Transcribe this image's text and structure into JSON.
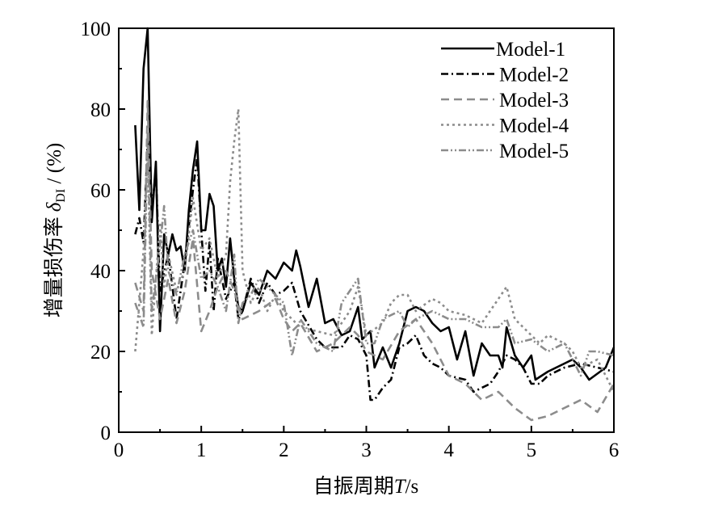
{
  "chart_data": {
    "type": "line",
    "title": "",
    "xlabel": "自振周期",
    "xlabel_var": "T",
    "xlabel_unit": "/s",
    "ylabel": "增量损伤率",
    "ylabel_var": "δ",
    "ylabel_sub": "DI",
    "ylabel_unit": " / (%)",
    "xlim": [
      0,
      6
    ],
    "ylim": [
      0,
      100
    ],
    "xticks": [
      "0",
      "1",
      "2",
      "3",
      "4",
      "5",
      "6"
    ],
    "yticks": [
      "0",
      "20",
      "40",
      "60",
      "80",
      "100"
    ],
    "grid": false,
    "legend_position": "top-right",
    "series": [
      {
        "name": "Model-1",
        "color": "#000000",
        "dash": "solid",
        "x": [
          0.2,
          0.25,
          0.3,
          0.35,
          0.4,
          0.45,
          0.5,
          0.55,
          0.6,
          0.65,
          0.7,
          0.75,
          0.8,
          0.85,
          0.9,
          0.95,
          1.0,
          1.05,
          1.1,
          1.15,
          1.2,
          1.25,
          1.3,
          1.35,
          1.4,
          1.45,
          1.5,
          1.6,
          1.7,
          1.8,
          1.9,
          2.0,
          2.1,
          2.15,
          2.2,
          2.3,
          2.4,
          2.5,
          2.6,
          2.7,
          2.8,
          2.9,
          2.95,
          3.05,
          3.1,
          3.2,
          3.3,
          3.4,
          3.5,
          3.6,
          3.7,
          3.8,
          3.9,
          4.0,
          4.1,
          4.2,
          4.3,
          4.4,
          4.5,
          4.6,
          4.65,
          4.7,
          4.8,
          4.9,
          5.0,
          5.05,
          5.2,
          5.4,
          5.5,
          5.6,
          5.7,
          5.9,
          6.0
        ],
        "y": [
          76,
          55,
          90,
          100,
          52,
          67,
          25,
          49,
          44,
          49,
          45,
          46,
          40,
          55,
          65,
          72,
          50,
          50,
          59,
          56,
          40,
          43,
          36,
          48,
          38,
          31,
          30,
          37,
          34,
          40,
          38,
          42,
          40,
          45,
          41,
          31,
          38,
          27,
          28,
          24,
          25,
          31,
          23,
          25,
          16,
          21,
          16,
          22,
          30,
          31,
          30,
          27,
          25,
          26,
          18,
          25,
          14,
          22,
          19,
          19,
          16,
          26,
          19,
          16,
          19,
          13,
          15,
          17,
          18,
          16,
          13,
          16,
          21
        ]
      },
      {
        "name": "Model-2",
        "color": "#000000",
        "dash": "dash-dot",
        "x": [
          0.2,
          0.25,
          0.3,
          0.35,
          0.4,
          0.45,
          0.5,
          0.6,
          0.7,
          0.8,
          0.9,
          0.95,
          1.0,
          1.05,
          1.1,
          1.15,
          1.2,
          1.3,
          1.4,
          1.45,
          1.5,
          1.6,
          1.7,
          1.8,
          1.9,
          2.0,
          2.1,
          2.2,
          2.4,
          2.5,
          2.7,
          2.8,
          2.9,
          3.0,
          3.05,
          3.1,
          3.2,
          3.3,
          3.4,
          3.5,
          3.6,
          3.7,
          3.8,
          3.9,
          4.0,
          4.2,
          4.3,
          4.4,
          4.5,
          4.6,
          4.7,
          4.8,
          4.9,
          5.0,
          5.1,
          5.2,
          5.4,
          5.6,
          5.8,
          6.0
        ],
        "y": [
          49,
          53,
          47,
          72,
          55,
          65,
          35,
          44,
          28,
          42,
          60,
          68,
          50,
          35,
          47,
          30,
          43,
          33,
          37,
          28,
          30,
          38,
          32,
          37,
          34,
          35,
          37,
          30,
          23,
          21,
          21,
          24,
          23,
          19,
          8,
          8,
          11,
          13,
          21,
          22,
          24,
          19,
          17,
          16,
          14,
          13,
          10,
          11,
          12,
          15,
          19,
          18,
          16,
          12,
          12,
          14,
          16,
          17,
          16,
          15
        ]
      },
      {
        "name": "Model-3",
        "color": "#8c8c8c",
        "dash": "dash",
        "x": [
          0.2,
          0.3,
          0.35,
          0.4,
          0.5,
          0.6,
          0.7,
          0.8,
          0.9,
          1.0,
          1.1,
          1.2,
          1.3,
          1.4,
          1.5,
          1.7,
          1.9,
          2.0,
          2.1,
          2.2,
          2.4,
          2.6,
          2.8,
          2.9,
          3.0,
          3.2,
          3.4,
          3.6,
          3.8,
          4.0,
          4.2,
          4.4,
          4.6,
          4.8,
          5.0,
          5.2,
          5.4,
          5.6,
          5.8,
          6.0
        ],
        "y": [
          37,
          30,
          82,
          40,
          28,
          38,
          27,
          35,
          48,
          25,
          30,
          36,
          40,
          35,
          28,
          30,
          33,
          28,
          25,
          27,
          20,
          22,
          26,
          24,
          20,
          18,
          25,
          28,
          22,
          14,
          12,
          8,
          10,
          6,
          3,
          4,
          6,
          8,
          5,
          12
        ]
      },
      {
        "name": "Model-4",
        "color": "#8c8c8c",
        "dash": "dot",
        "x": [
          0.2,
          0.25,
          0.3,
          0.35,
          0.4,
          0.5,
          0.55,
          0.6,
          0.7,
          0.8,
          0.9,
          1.0,
          1.1,
          1.2,
          1.3,
          1.35,
          1.4,
          1.45,
          1.5,
          1.6,
          1.7,
          1.8,
          1.9,
          2.0,
          2.2,
          2.4,
          2.6,
          2.8,
          2.9,
          3.0,
          3.2,
          3.3,
          3.4,
          3.5,
          3.6,
          3.8,
          3.9,
          4.0,
          4.2,
          4.4,
          4.6,
          4.7,
          4.8,
          5.0,
          5.1,
          5.2,
          5.4,
          5.5,
          5.6,
          5.8,
          6.0
        ],
        "y": [
          20,
          32,
          45,
          70,
          24,
          52,
          36,
          44,
          35,
          40,
          58,
          45,
          48,
          38,
          44,
          62,
          72,
          80,
          40,
          32,
          36,
          30,
          34,
          30,
          26,
          25,
          24,
          30,
          36,
          24,
          27,
          32,
          34,
          34,
          30,
          33,
          32,
          30,
          29,
          27,
          33,
          36,
          28,
          24,
          22,
          24,
          22,
          20,
          16,
          18,
          10
        ]
      },
      {
        "name": "Model-5",
        "color": "#8c8c8c",
        "dash": "dash-dot-dot",
        "x": [
          0.2,
          0.3,
          0.35,
          0.4,
          0.5,
          0.55,
          0.6,
          0.7,
          0.8,
          0.9,
          1.0,
          1.1,
          1.2,
          1.3,
          1.4,
          1.45,
          1.5,
          1.6,
          1.7,
          1.8,
          2.0,
          2.1,
          2.2,
          2.4,
          2.6,
          2.7,
          2.8,
          2.9,
          3.0,
          3.1,
          3.2,
          3.4,
          3.5,
          3.6,
          3.8,
          4.0,
          4.2,
          4.4,
          4.6,
          4.7,
          4.8,
          5.0,
          5.2,
          5.4,
          5.6,
          5.7,
          5.8,
          6.0
        ],
        "y": [
          32,
          26,
          74,
          30,
          46,
          56,
          40,
          34,
          44,
          50,
          38,
          40,
          36,
          30,
          44,
          27,
          32,
          34,
          38,
          36,
          32,
          19,
          28,
          22,
          20,
          32,
          35,
          38,
          22,
          22,
          28,
          30,
          26,
          28,
          30,
          28,
          28,
          26,
          26,
          28,
          22,
          23,
          20,
          22,
          14,
          20,
          20,
          19
        ]
      }
    ]
  }
}
